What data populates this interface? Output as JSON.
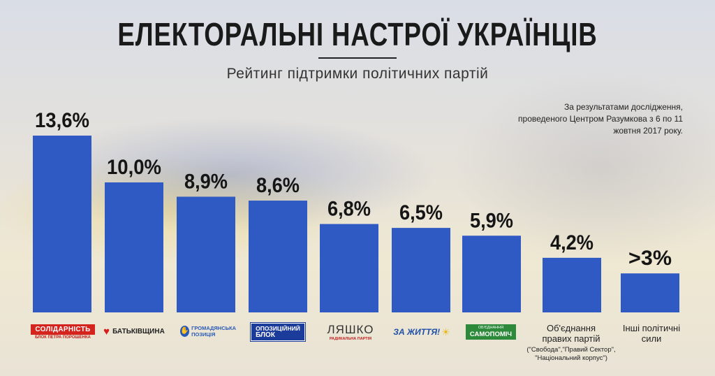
{
  "title": "ЕЛЕКТОРАЛЬНІ НАСТРОЇ УКРАЇНЦІВ",
  "subtitle": "Рейтинг підтримки політичних партій",
  "note": "За результатами дослідження, проведеного Центром Разумкова з 6 по 11 жовтня 2017 року.",
  "colors": {
    "bar": "#2f59c3",
    "text": "#151515"
  },
  "chart_data": {
    "type": "bar",
    "title": "ЕЛЕКТОРАЛЬНІ НАСТРОЇ УКРАЇНЦІВ",
    "subtitle": "Рейтинг підтримки політичних партій",
    "categories": [
      "Солідарність",
      "Батьківщина",
      "Громадянська позиція",
      "Опозиційний блок",
      "Ляшко",
      "За життя!",
      "Самопоміч",
      "Об'єднання правих партій",
      "Інші політичні сили"
    ],
    "values": [
      13.6,
      10.0,
      8.9,
      8.6,
      6.8,
      6.5,
      5.9,
      4.2,
      3.0
    ],
    "labels": [
      "13,6%",
      "10,0%",
      "8,9%",
      "8,6%",
      "6,8%",
      "6,5%",
      "5,9%",
      "4,2%",
      ">3%"
    ],
    "ylim": [
      0,
      14.5
    ],
    "unit": "%"
  },
  "logos": {
    "solidarnist": {
      "name": "СОЛІДАРНІСТЬ",
      "sub": "БЛОК ПЕТРА ПОРОШЕНКА"
    },
    "batkivshchyna": {
      "name": "БАТЬКІВЩИНА"
    },
    "hromadyanska": {
      "line1": "ГРОМАДЯНСЬКА",
      "line2": "ПОЗИЦІЯ"
    },
    "opozytsiynyi": {
      "line1": "ОПОЗИЦІЙНИЙ",
      "line2": "БЛОК"
    },
    "liashko": {
      "name": "ЛЯШКО",
      "sub": "РАДИКАЛЬНА ПАРТІЯ"
    },
    "za_zhyttia": {
      "name": "ЗА ЖИТТЯ!"
    },
    "samopomich": {
      "line1": "ОБ'ЄДНАННЯ",
      "line2": "САМОПОМІЧ"
    }
  },
  "parties_text": {
    "right": {
      "line1": "Об'єднання",
      "line2": "правих партій",
      "sub": "(\"Свобода\",\"Правий Сектор\", \"Національний корпус\")"
    },
    "others": {
      "line1": "Інші політичні",
      "line2": "сили"
    }
  }
}
